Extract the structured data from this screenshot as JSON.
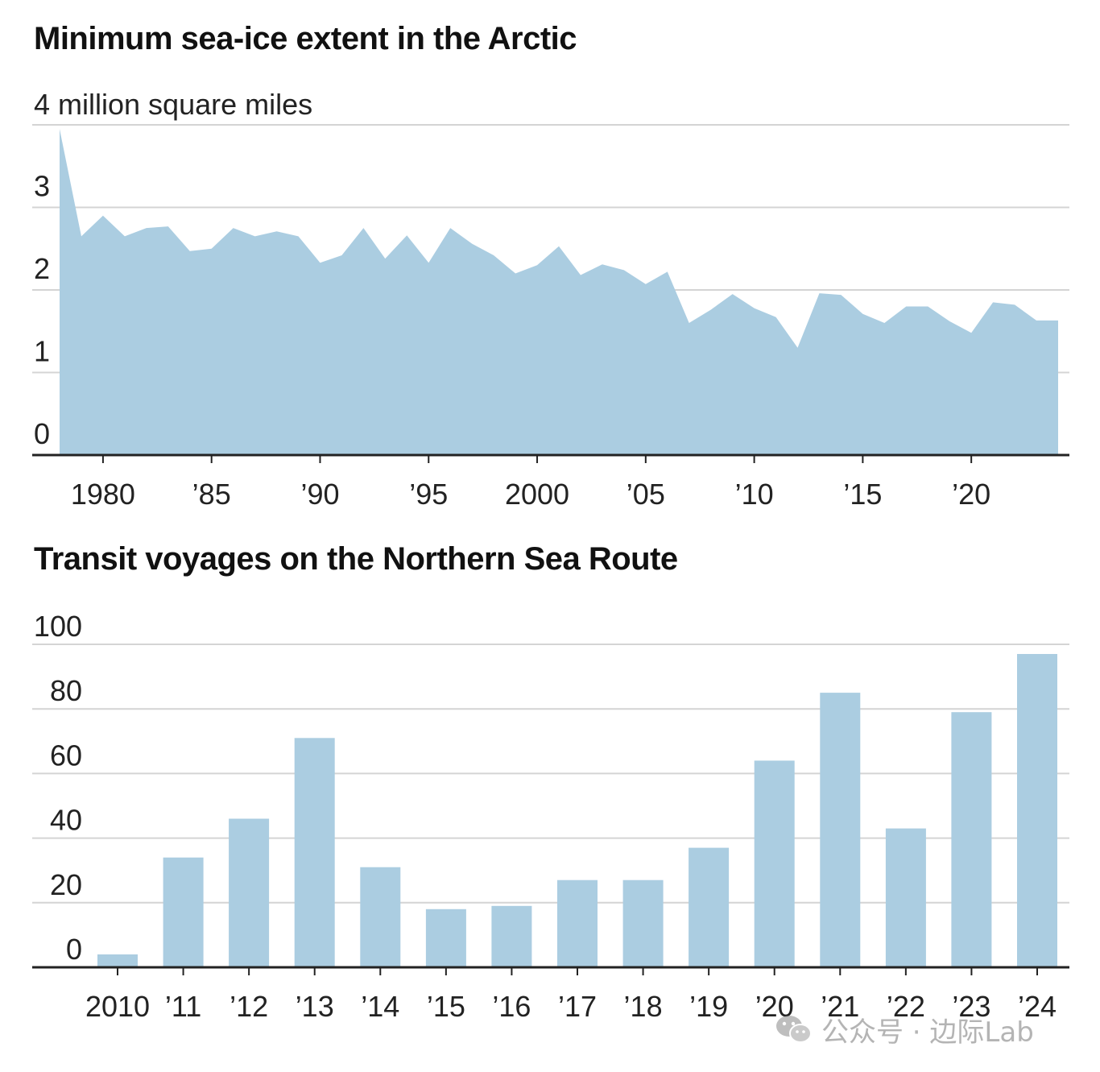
{
  "colors": {
    "fill": "#abcde1",
    "grid": "#d4d4d4",
    "axis": "#222222"
  },
  "watermark": {
    "text": "公众号 · 边际Lab",
    "icon": "wechat-icon"
  },
  "chart_data": [
    {
      "type": "area",
      "title": "Minimum sea-ice extent in the Arctic",
      "unit_label": "4 million square miles",
      "y_tick_labels": [
        "0",
        "1",
        "2",
        "3"
      ],
      "ylim": [
        0,
        4
      ],
      "xlim": [
        1978,
        2024
      ],
      "x_tick_values": [
        1980,
        1985,
        1990,
        1995,
        2000,
        2005,
        2010,
        2015,
        2020
      ],
      "x_tick_labels": [
        "1980",
        "’85",
        "’90",
        "’95",
        "2000",
        "’05",
        "’10",
        "’15",
        "’20"
      ],
      "x": [
        1978,
        1979,
        1980,
        1981,
        1982,
        1983,
        1984,
        1985,
        1986,
        1987,
        1988,
        1989,
        1990,
        1991,
        1992,
        1993,
        1994,
        1995,
        1996,
        1997,
        1998,
        1999,
        2000,
        2001,
        2002,
        2003,
        2004,
        2005,
        2006,
        2007,
        2008,
        2009,
        2010,
        2011,
        2012,
        2013,
        2014,
        2015,
        2016,
        2017,
        2018,
        2019,
        2020,
        2021,
        2022,
        2023,
        2024
      ],
      "values": [
        3.95,
        2.65,
        2.9,
        2.65,
        2.75,
        2.77,
        2.47,
        2.5,
        2.75,
        2.65,
        2.71,
        2.65,
        2.33,
        2.42,
        2.75,
        2.38,
        2.66,
        2.33,
        2.75,
        2.56,
        2.42,
        2.2,
        2.3,
        2.53,
        2.18,
        2.31,
        2.24,
        2.07,
        2.22,
        1.6,
        1.76,
        1.95,
        1.78,
        1.67,
        1.3,
        1.96,
        1.94,
        1.71,
        1.6,
        1.8,
        1.8,
        1.62,
        1.48,
        1.85,
        1.82,
        1.63,
        1.63
      ],
      "grid": true
    },
    {
      "type": "bar",
      "title": "Transit voyages on the Northern Sea Route",
      "categories": [
        "2010",
        "’11",
        "’12",
        "’13",
        "’14",
        "’15",
        "’16",
        "’17",
        "’18",
        "’19",
        "’20",
        "’21",
        "’22",
        "’23",
        "’24"
      ],
      "values": [
        4,
        34,
        46,
        71,
        31,
        18,
        19,
        27,
        27,
        37,
        64,
        85,
        43,
        79,
        97
      ],
      "ylim": [
        0,
        100
      ],
      "y_ticks": [
        0,
        20,
        40,
        60,
        80,
        100
      ],
      "y_tick_labels": [
        "0",
        "20",
        "40",
        "60",
        "80",
        "100"
      ],
      "grid": true
    }
  ]
}
